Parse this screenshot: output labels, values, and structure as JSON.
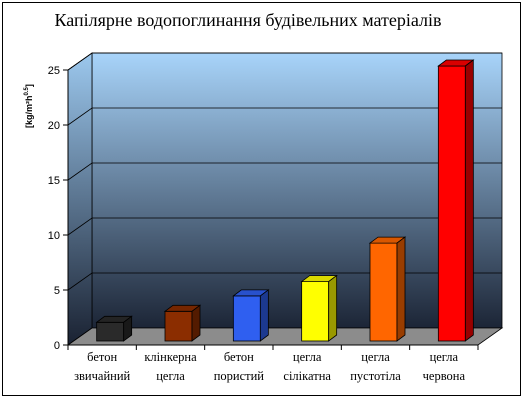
{
  "chart_data": {
    "type": "bar",
    "title": "Капілярне водопоглинання будівельних матеріалів",
    "ylabel": "[kg/m²h^0.5]",
    "ylim": [
      0,
      25
    ],
    "yticks": [
      "0",
      "5",
      "10",
      "15",
      "20",
      "25"
    ],
    "grid": true,
    "categories": [
      [
        "бетон",
        "звичайний"
      ],
      [
        "клінкерна",
        "цегла"
      ],
      [
        "бетон",
        "пористий"
      ],
      [
        "цегла",
        "сілікатна"
      ],
      [
        "цегла",
        "пустотіла"
      ],
      [
        "цегла",
        "червона"
      ]
    ],
    "values": [
      1.7,
      2.7,
      4.1,
      5.4,
      8.9,
      25.0
    ],
    "colors": [
      "#2a2a2a",
      "#8b2d00",
      "#2f5ff0",
      "#ffff00",
      "#ff6600",
      "#ff0000"
    ],
    "bg_top": "#a8d4fa",
    "bg_bottom": "#1c2536"
  }
}
